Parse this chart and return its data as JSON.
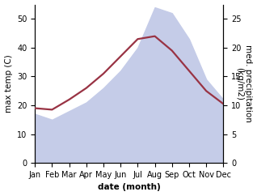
{
  "months": [
    "Jan",
    "Feb",
    "Mar",
    "Apr",
    "May",
    "Jun",
    "Jul",
    "Aug",
    "Sep",
    "Oct",
    "Nov",
    "Dec"
  ],
  "temp_max": [
    19.0,
    18.5,
    22.0,
    26.0,
    31.0,
    37.0,
    43.0,
    44.0,
    39.0,
    32.0,
    25.0,
    20.5
  ],
  "precip_area": [
    8.5,
    7.5,
    9.0,
    10.5,
    13.0,
    16.0,
    20.0,
    27.0,
    26.0,
    21.5,
    14.5,
    11.0
  ],
  "temp_color": "#993344",
  "precip_fill_color": "#c5cce8",
  "xlabel": "date (month)",
  "ylabel_left": "max temp (C)",
  "ylabel_right": "med. precipitation\n(kg/m2)",
  "ylim_left": [
    0,
    55
  ],
  "ylim_right": [
    0,
    27.5
  ],
  "yticks_left": [
    0,
    10,
    20,
    30,
    40,
    50
  ],
  "yticks_right": [
    0,
    5,
    10,
    15,
    20,
    25
  ],
  "background_color": "#ffffff",
  "label_fontsize": 7.5,
  "tick_fontsize": 7.0
}
